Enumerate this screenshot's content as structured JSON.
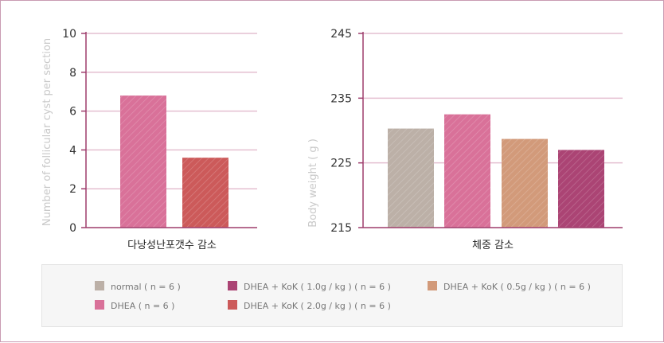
{
  "chart_data": [
    {
      "type": "bar",
      "caption": "다낭성난포갯수 감소",
      "ylabel": "Number of follicular cyst per section",
      "ylim": [
        0,
        10
      ],
      "yticks": [
        "0",
        "2",
        "4",
        "6",
        "8",
        "10"
      ],
      "grid": true,
      "series": [
        {
          "legend": "DHEA ( n = 6 )",
          "value": 6.8,
          "color": "#d97199"
        },
        {
          "legend": "DHEA + KoK ( 2.0g / kg ) ( n = 6 )",
          "value": 3.6,
          "color": "#cc5a5a"
        }
      ]
    },
    {
      "type": "bar",
      "caption": "체중 감소",
      "ylabel": "Body weight ( g )",
      "ylim": [
        215,
        245
      ],
      "yticks": [
        "215",
        "225",
        "235",
        "245"
      ],
      "grid": true,
      "series": [
        {
          "legend": "normal ( n = 6 )",
          "value": 230.3,
          "color": "#bcb0a7"
        },
        {
          "legend": "DHEA ( n = 6 )",
          "value": 232.5,
          "color": "#d97199"
        },
        {
          "legend": "DHEA + KoK ( 0.5g / kg ) ( n = 6 )",
          "value": 228.7,
          "color": "#d29a7a"
        },
        {
          "legend": "DHEA + KoK ( 1.0g / kg ) ( n = 6 )",
          "value": 227.0,
          "color": "#ab4474"
        }
      ]
    }
  ],
  "legend": [
    {
      "label": "normal ( n = 6 )",
      "color": "#bcb0a7",
      "icon": "square"
    },
    {
      "label": "DHEA + KoK ( 1.0g / kg ) ( n = 6 )",
      "color": "#ab4474",
      "icon": "square"
    },
    {
      "label": "DHEA + KoK ( 0.5g / kg ) ( n = 6 )",
      "color": "#d29a7a",
      "icon": "square"
    },
    {
      "label": "DHEA ( n = 6 )",
      "color": "#d97199",
      "icon": "square"
    },
    {
      "label": "DHEA + KoK ( 2.0g / kg ) ( n = 6 )",
      "color": "#cc5a5a",
      "icon": "square"
    }
  ],
  "colors": {
    "axis": "#9e3d6c",
    "grid": "#e4bfd0",
    "frame": "#c99bb2"
  }
}
